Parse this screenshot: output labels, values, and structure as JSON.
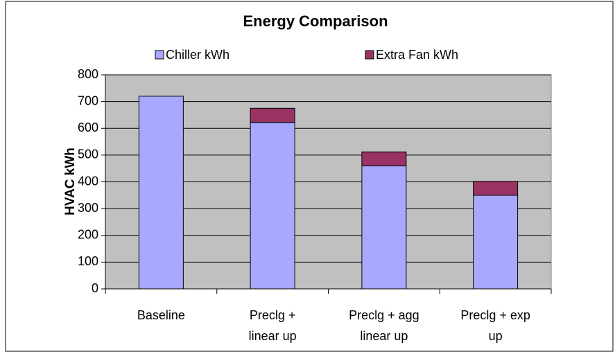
{
  "chart_data": {
    "type": "stacked_bar",
    "title": "Energy Comparison",
    "y_label": "HVAC kWh",
    "categories": [
      [
        "Baseline"
      ],
      [
        "Preclg +",
        "linear up"
      ],
      [
        "Preclg + agg",
        "linear up"
      ],
      [
        "Preclg + exp",
        "up"
      ]
    ],
    "series": [
      {
        "name": "Chiller kWh",
        "color": "#a8a8ff",
        "values": [
          720,
          622,
          460,
          350
        ]
      },
      {
        "name": "Extra Fan kWh",
        "color": "#993366",
        "values": [
          0,
          53,
          52,
          52
        ]
      }
    ],
    "ylim": [
      0,
      800
    ],
    "yticks": [
      0,
      100,
      200,
      300,
      400,
      500,
      600,
      700,
      800
    ],
    "grid": true,
    "plot_background": "#c0c0c0",
    "legend": "top"
  }
}
